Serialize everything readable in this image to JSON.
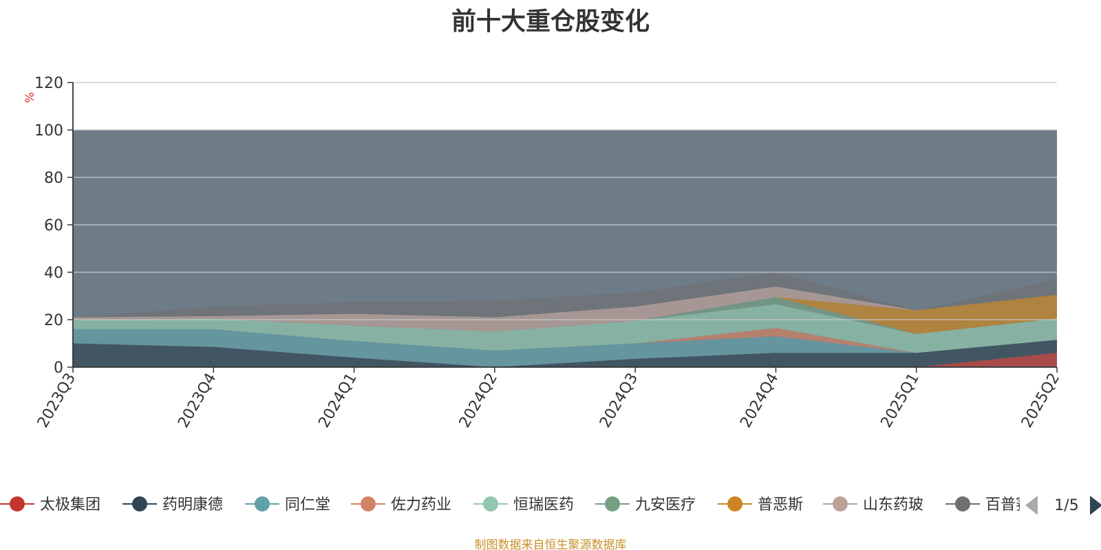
{
  "chart_data": {
    "type": "area",
    "title": "前十大重仓股变化",
    "ylabel": "%",
    "ylim": [
      0,
      120
    ],
    "yticks": [
      0,
      20,
      40,
      60,
      80,
      100,
      120
    ],
    "categories": [
      "2023Q3",
      "2023Q4",
      "2024Q1",
      "2024Q2",
      "2024Q3",
      "2024Q4",
      "2025Q1",
      "2025Q2"
    ],
    "grid": true,
    "legend_position": "bottom",
    "legend_page": "1/5",
    "series": [
      {
        "name": "太极集团",
        "color": "#c23531",
        "values": [
          0,
          0,
          0,
          0,
          0,
          0,
          0,
          6
        ]
      },
      {
        "name": "药明康德",
        "color": "#2f4554",
        "values": [
          10,
          8.5,
          4,
          0,
          3.5,
          6,
          6,
          5.5
        ]
      },
      {
        "name": "同仁堂",
        "color": "#61a0a8",
        "values": [
          6,
          7.5,
          7,
          7,
          6.5,
          7,
          0,
          0
        ]
      },
      {
        "name": "佐力药业",
        "color": "#d48265",
        "values": [
          0,
          0,
          0,
          0,
          0,
          3.5,
          0,
          0
        ]
      },
      {
        "name": "恒瑞医药",
        "color": "#91c7ae",
        "values": [
          4,
          4.5,
          6.5,
          8,
          9.5,
          10,
          8,
          9
        ]
      },
      {
        "name": "九安医疗",
        "color": "#749f83",
        "values": [
          0,
          0,
          0,
          0,
          0,
          3,
          0,
          0
        ]
      },
      {
        "name": "普恶斯",
        "color": "#ca8622",
        "values": [
          0,
          0,
          0,
          0,
          0,
          0,
          10,
          10
        ]
      },
      {
        "name": "山东药玻",
        "color": "#bda29a",
        "values": [
          1,
          1,
          5,
          6,
          6,
          4.5,
          0,
          0
        ]
      },
      {
        "name": "百普赛斯",
        "color": "#6e7074",
        "values": [
          0,
          4,
          5,
          7,
          6,
          6,
          0,
          6.5
        ]
      }
    ]
  },
  "footer": "制图数据来自恒生聚源数据库"
}
